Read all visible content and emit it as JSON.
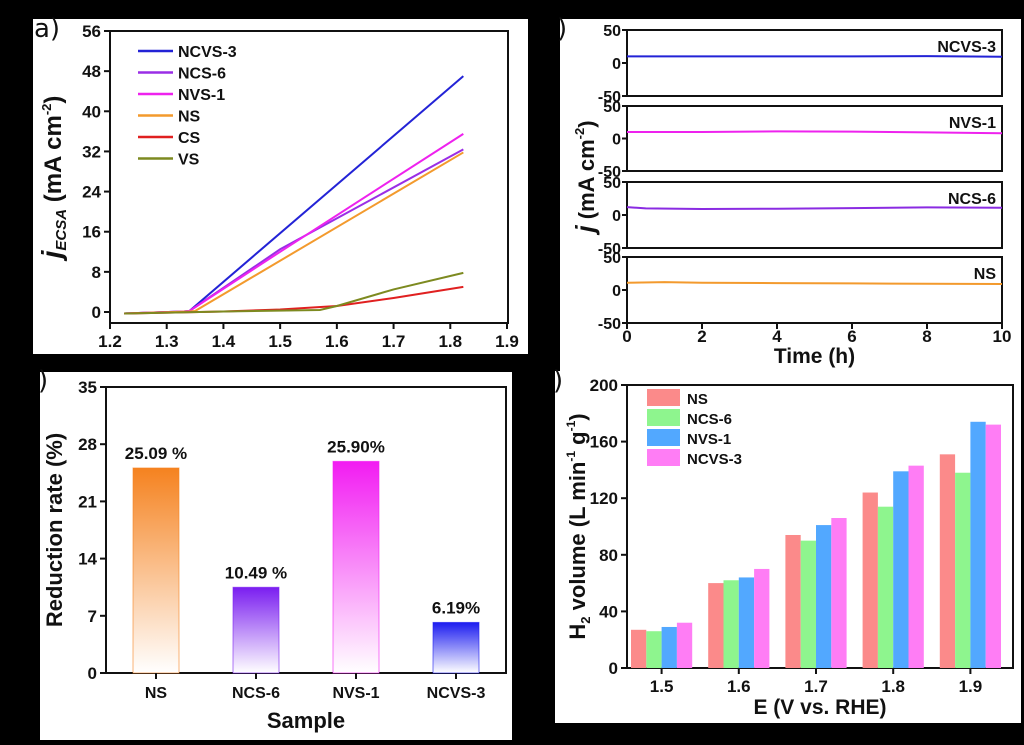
{
  "panel_labels": {
    "a": "a)",
    "b": ")",
    "c": ")",
    "d": ")"
  },
  "chart_data": [
    {
      "id": "a",
      "type": "line",
      "title": "",
      "xlabel": "",
      "ylabel": "j_ECSA (mA cm^-2)",
      "ylabel_main": "j",
      "ylabel_sub": "ECSA",
      "ylabel_rest": " (mA cm",
      "ylabel_sup": "-2",
      "ylabel_close": ")",
      "xlim": [
        1.2,
        1.9
      ],
      "ylim": [
        0,
        56
      ],
      "xticks": [
        "1.2",
        "1.3",
        "1.4",
        "1.5",
        "1.6",
        "1.7",
        "1.8",
        "1.9"
      ],
      "yticks": [
        "0",
        "8",
        "16",
        "24",
        "32",
        "40",
        "48",
        "56"
      ],
      "legend_position": "top-left",
      "series": [
        {
          "name": "NCVS-3",
          "color": "#2323d6",
          "x": [
            1.225,
            1.33,
            1.34,
            1.823
          ],
          "y": [
            -0.3,
            0.1,
            0.2,
            47
          ]
        },
        {
          "name": "NCS-6",
          "color": "#9a2ee6",
          "x": [
            1.225,
            1.33,
            1.34,
            1.5,
            1.823
          ],
          "y": [
            -0.3,
            0.1,
            0.2,
            12.5,
            32.4
          ]
        },
        {
          "name": "NVS-1",
          "color": "#ee22ee",
          "x": [
            1.225,
            1.33,
            1.34,
            1.5,
            1.823
          ],
          "y": [
            -0.3,
            0.1,
            0.2,
            12,
            35.5
          ]
        },
        {
          "name": "NS",
          "color": "#f39a2d",
          "x": [
            1.225,
            1.34,
            1.35,
            1.823
          ],
          "y": [
            -0.3,
            0.1,
            0.2,
            31.8
          ]
        },
        {
          "name": "CS",
          "color": "#e02020",
          "x": [
            1.225,
            1.4,
            1.5,
            1.6,
            1.7,
            1.823
          ],
          "y": [
            -0.3,
            0.1,
            0.5,
            1.2,
            2.8,
            5.0
          ]
        },
        {
          "name": "VS",
          "color": "#7d8a20",
          "x": [
            1.225,
            1.4,
            1.57,
            1.6,
            1.7,
            1.823
          ],
          "y": [
            -0.3,
            0.1,
            0.4,
            1.2,
            4.5,
            7.8
          ]
        }
      ]
    },
    {
      "id": "b",
      "type": "line",
      "xlabel": "Time (h)",
      "ylabel": "j (mA cm^-2)",
      "ylabel_main": "j",
      "ylabel_rest": " (mA cm",
      "ylabel_sup": "-2",
      "ylabel_close": ")",
      "xlim": [
        0,
        10
      ],
      "ylim": [
        -50,
        50
      ],
      "xticks": [
        "0",
        "2",
        "4",
        "6",
        "8",
        "10"
      ],
      "yticks": [
        "-50",
        "0",
        "50"
      ],
      "subplots": [
        {
          "name": "NCVS-3",
          "color": "#2323d6",
          "x": [
            0,
            2,
            4,
            6,
            8,
            10
          ],
          "y": [
            10,
            10,
            10,
            10,
            10.5,
            9.5
          ]
        },
        {
          "name": "NVS-1",
          "color": "#ee22ee",
          "x": [
            0,
            2,
            4,
            6,
            8,
            10
          ],
          "y": [
            10,
            10,
            11,
            10.5,
            9.5,
            8
          ]
        },
        {
          "name": "NCS-6",
          "color": "#8a2be2",
          "x": [
            0,
            0.5,
            2,
            4,
            6,
            8,
            10
          ],
          "y": [
            12,
            10,
            9,
            9.5,
            10.5,
            11.5,
            11
          ]
        },
        {
          "name": "NS",
          "color": "#f39a2d",
          "x": [
            0,
            1,
            2,
            4,
            6,
            8,
            10
          ],
          "y": [
            11,
            12,
            11,
            10.5,
            10,
            9.5,
            9
          ]
        }
      ]
    },
    {
      "id": "c",
      "type": "bar",
      "xlabel": "Sample",
      "ylabel": "Reduction rate (%)",
      "ylim": [
        0,
        35
      ],
      "yticks": [
        "0",
        "7",
        "14",
        "21",
        "28",
        "35"
      ],
      "categories": [
        "NS",
        "NCS-6",
        "NVS-1",
        "NCVS-3"
      ],
      "values": [
        25.09,
        10.49,
        25.9,
        6.19
      ],
      "data_labels": [
        "25.09 %",
        "10.49 %",
        "25.90%",
        "6.19%"
      ],
      "colors": [
        "#f5821f",
        "#7a1ef0",
        "#f21cf2",
        "#1c1cf0"
      ]
    },
    {
      "id": "d",
      "type": "bar",
      "xlabel": "E (V vs. RHE)",
      "ylabel": "H2 volume (L min^-1 g^-1)",
      "ylabel_parts": {
        "h": "H",
        "sub2": "2",
        "mid": " volume (L min",
        "sup1": "-1",
        "g": " g",
        "sup2": "-1",
        "close": ")"
      },
      "ylim": [
        0,
        200
      ],
      "yticks": [
        "0",
        "40",
        "80",
        "120",
        "160",
        "200"
      ],
      "categories": [
        "1.5",
        "1.6",
        "1.7",
        "1.8",
        "1.9"
      ],
      "legend_position": "top-left",
      "series": [
        {
          "name": "NS",
          "color": "#fb8a8a",
          "values": [
            27,
            60,
            94,
            124,
            151
          ]
        },
        {
          "name": "NCS-6",
          "color": "#8ef58e",
          "values": [
            26,
            62,
            90,
            114,
            138
          ]
        },
        {
          "name": "NVS-1",
          "color": "#52a8ff",
          "values": [
            29,
            64,
            101,
            139,
            174
          ]
        },
        {
          "name": "NCVS-3",
          "color": "#ff7df5",
          "values": [
            32,
            70,
            106,
            143,
            172
          ]
        }
      ]
    }
  ]
}
